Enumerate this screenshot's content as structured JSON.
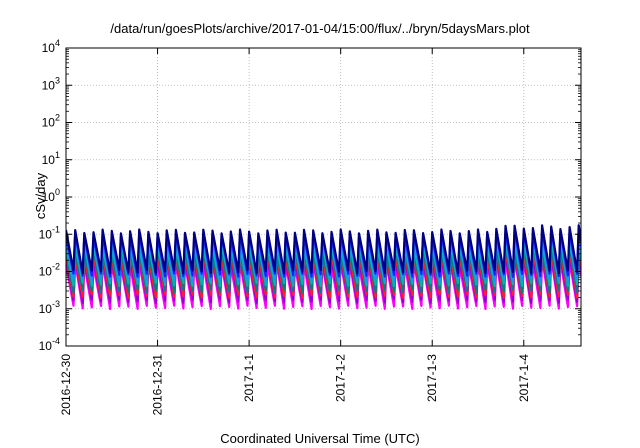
{
  "chart_data": {
    "type": "line",
    "title": "/data/run/goesPlots/archive/2017-01-04/15:00/flux/../bryn/5daysMars.plot",
    "xlabel": "Coordinated Universal Time (UTC)",
    "ylabel": "cSv/day",
    "yscale": "log",
    "ylim": [
      0.0001,
      10000
    ],
    "xlim": [
      "2016-12-30T00:00",
      "2017-01-04T15:00"
    ],
    "x_ticks": [
      {
        "label": "2016-12-30",
        "value": "2016-12-30T00:00"
      },
      {
        "label": "2016-12-31",
        "value": "2016-12-31T00:00"
      },
      {
        "label": "2017-1-1",
        "value": "2017-01-01T00:00"
      },
      {
        "label": "2017-1-2",
        "value": "2017-01-02T00:00"
      },
      {
        "label": "2017-1-3",
        "value": "2017-01-03T00:00"
      },
      {
        "label": "2017-1-4",
        "value": "2017-01-04T00:00"
      }
    ],
    "y_ticks": [
      {
        "mantissa": "10",
        "exp": "-4",
        "value": 0.0001
      },
      {
        "mantissa": "10",
        "exp": "-3",
        "value": 0.001
      },
      {
        "mantissa": "10",
        "exp": "-2",
        "value": 0.01
      },
      {
        "mantissa": "10",
        "exp": "-1",
        "value": 0.1
      },
      {
        "mantissa": "10",
        "exp": "0",
        "value": 1
      },
      {
        "mantissa": "10",
        "exp": "1",
        "value": 10
      },
      {
        "mantissa": "10",
        "exp": "2",
        "value": 100
      },
      {
        "mantissa": "10",
        "exp": "3",
        "value": 1000
      },
      {
        "mantissa": "10",
        "exp": "4",
        "value": 10000
      }
    ],
    "grid": true,
    "legend": "none",
    "sawtooth": {
      "teeth_per_day": 10,
      "series_count": 8,
      "colors": [
        "#ff00ff",
        "#9400d3",
        "#ff2020",
        "#008080",
        "#00b4b4",
        "#1e90ff",
        "#2020ff",
        "#000080"
      ],
      "peak": [
        0.016,
        0.022,
        0.028,
        0.038,
        0.052,
        0.075,
        0.095,
        0.12
      ],
      "trough": [
        0.0011,
        0.0016,
        0.0022,
        0.003,
        0.0045,
        0.006,
        0.008,
        0.01
      ],
      "late_peak_boost": 1.3
    }
  }
}
